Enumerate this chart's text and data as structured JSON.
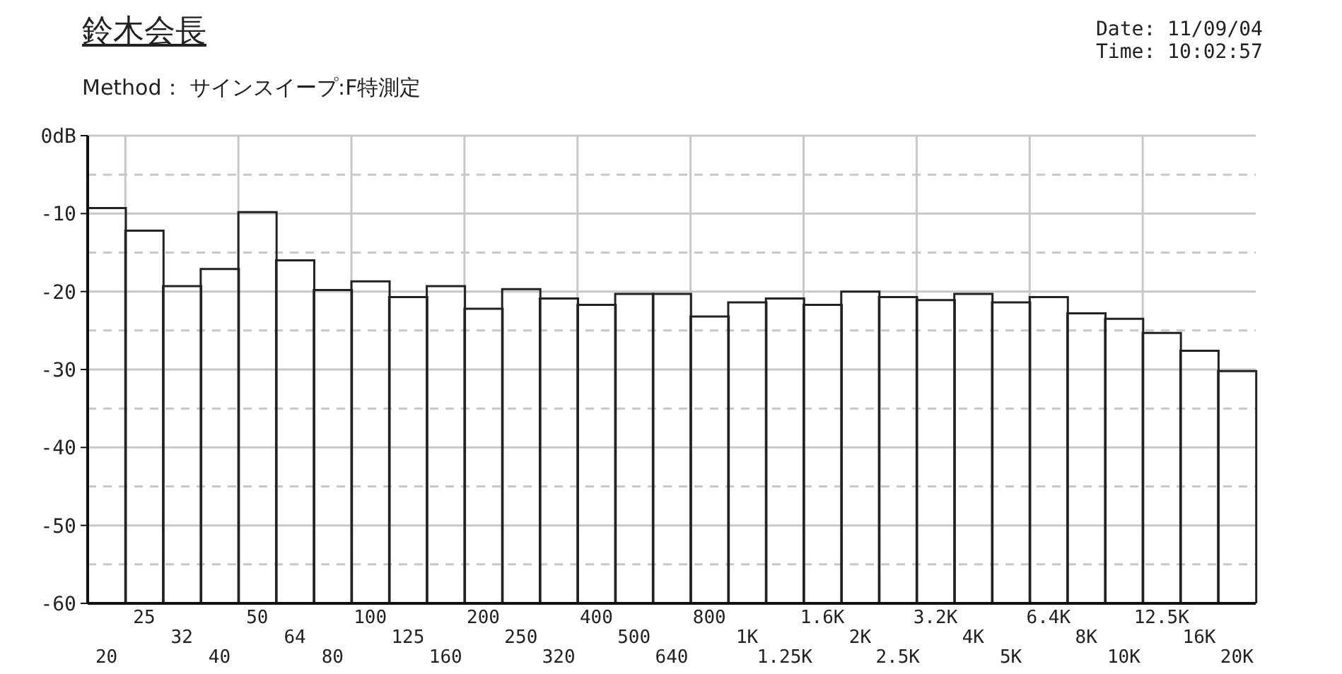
{
  "chart_data": {
    "type": "bar",
    "title": "鈴木会長",
    "subtitle": "Method： サインスイープ:F特測定",
    "annotations": [
      "Date: 11/09/04",
      "Time: 10:02:57"
    ],
    "categories": [
      "20",
      "25",
      "32",
      "40",
      "50",
      "64",
      "80",
      "100",
      "125",
      "160",
      "200",
      "250",
      "320",
      "400",
      "500",
      "640",
      "800",
      "1K",
      "1.25K",
      "1.6K",
      "2K",
      "2.5K",
      "3.2K",
      "4K",
      "5K",
      "6.4K",
      "8K",
      "10K",
      "12.5K",
      "16K",
      "20K"
    ],
    "base": [
      -60,
      -60,
      -60,
      -60,
      -60,
      -60,
      -60,
      -60,
      -60,
      -60,
      -60,
      -60,
      -60,
      -60,
      -60,
      -60,
      -60,
      -60,
      -60,
      -60,
      -60,
      -60,
      -60,
      -60,
      -60,
      -60,
      -60,
      -60,
      -60,
      -60,
      -60
    ],
    "values": [
      50.7,
      47.8,
      40.7,
      42.9,
      50.2,
      44.0,
      40.2,
      41.3,
      39.3,
      40.7,
      37.8,
      40.3,
      39.1,
      38.3,
      39.7,
      39.7,
      36.8,
      38.6,
      39.1,
      38.3,
      40.0,
      39.3,
      38.9,
      39.7,
      38.6,
      39.3,
      37.2,
      36.5,
      34.7,
      32.4,
      29.8
    ],
    "color": "#222222",
    "ylim": [
      -60,
      0
    ],
    "yticks": [
      {
        "value": 0,
        "label": "0dB"
      },
      -10,
      -20,
      -30,
      -40,
      -50,
      -60
    ],
    "grid": true
  }
}
